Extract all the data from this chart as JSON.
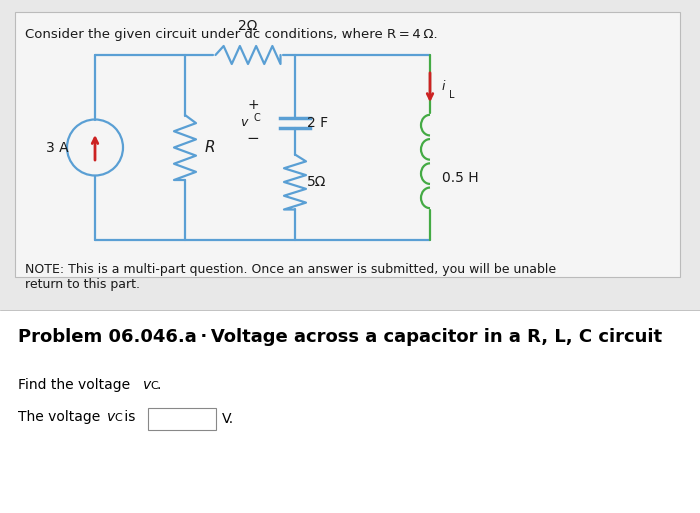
{
  "bg_top_color": "#d8d8d8",
  "card_color": "#e8e8e8",
  "bg_bottom_color": "#f0f0f0",
  "title_text": "Consider the given circuit under dc conditions, where R = 4 Ω.",
  "note_line1": "NOTE: This is a multi-part question. Once an answer is submitted, you will be unable",
  "note_line2": "return to this part.",
  "problem_title": "Problem 06.046.a · Voltage across a capacitor in a R, L, C circuit",
  "find_text": "Find the voltage v",
  "find_sub": "C",
  "find_end": ".",
  "answer_text": "The voltage v",
  "answer_sub": "C",
  "answer_end": " is",
  "unit_text": "V.",
  "circuit_color": "#5a9fd4",
  "arrow_color": "#cc2222",
  "inductor_color": "#44aa44",
  "text_color": "#1a1a1a",
  "label_2ohm": "2Ω",
  "label_cap": "2 F",
  "label_5ohm": "5Ω",
  "label_ind": "0.5 H",
  "label_R": "R",
  "label_3A": "3 A",
  "label_plus": "+",
  "label_minus": "−",
  "label_vC": "v",
  "label_iL": "i"
}
